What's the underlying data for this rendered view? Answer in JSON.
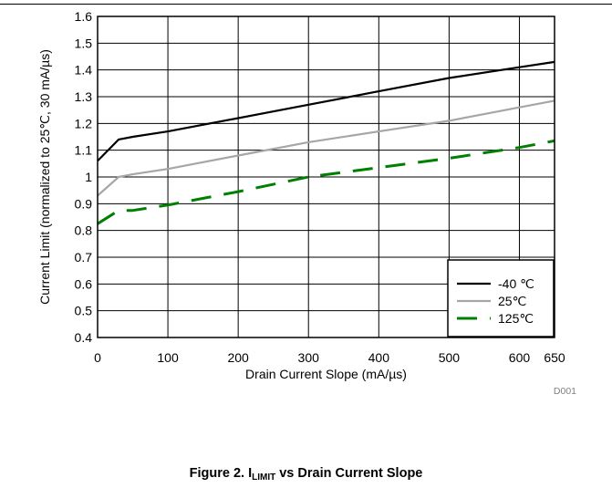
{
  "chart_data": {
    "type": "line",
    "xlabel": "Drain Current Slope (mA/µs)",
    "ylabel": "Current Limit (normalized to 25℃, 30 mA/µs)",
    "xlim": [
      0,
      650
    ],
    "ylim": [
      0.4,
      1.6
    ],
    "x_ticks": [
      0,
      100,
      200,
      300,
      400,
      500,
      600,
      650
    ],
    "x_tick_labels": [
      "0",
      "100",
      "200",
      "300",
      "400",
      "500",
      "600",
      "650"
    ],
    "y_ticks": [
      0.4,
      0.5,
      0.6,
      0.7,
      0.8,
      0.9,
      1.0,
      1.1,
      1.2,
      1.3,
      1.4,
      1.5,
      1.6
    ],
    "y_tick_labels": [
      "0.4",
      "0.5",
      "0.6",
      "0.7",
      "0.8",
      "0.9",
      "1",
      "1.1",
      "1.2",
      "1.3",
      "1.4",
      "1.5",
      "1.6"
    ],
    "grid": true,
    "legend_position": "bottom-right",
    "annotation": "D001",
    "series": [
      {
        "name": "-40 ℃",
        "color": "#000000",
        "dash": "solid",
        "x": [
          0,
          30,
          50,
          100,
          200,
          300,
          400,
          500,
          600,
          650
        ],
        "y": [
          1.06,
          1.14,
          1.15,
          1.17,
          1.22,
          1.27,
          1.32,
          1.37,
          1.41,
          1.43
        ]
      },
      {
        "name": "25℃",
        "color": "#a6a6a6",
        "dash": "solid",
        "x": [
          0,
          30,
          50,
          100,
          200,
          300,
          400,
          500,
          600,
          650
        ],
        "y": [
          0.93,
          1.0,
          1.01,
          1.03,
          1.08,
          1.13,
          1.17,
          1.21,
          1.26,
          1.285
        ]
      },
      {
        "name": "125℃",
        "color": "#008000",
        "dash": "dashed",
        "x": [
          0,
          30,
          50,
          100,
          200,
          300,
          400,
          500,
          600,
          650
        ],
        "y": [
          0.825,
          0.875,
          0.875,
          0.895,
          0.945,
          1.0,
          1.035,
          1.07,
          1.11,
          1.135
        ]
      }
    ]
  },
  "caption": {
    "prefix": "Figure 2. I",
    "subscript": "LIMIT",
    "suffix": " vs Drain Current Slope"
  }
}
